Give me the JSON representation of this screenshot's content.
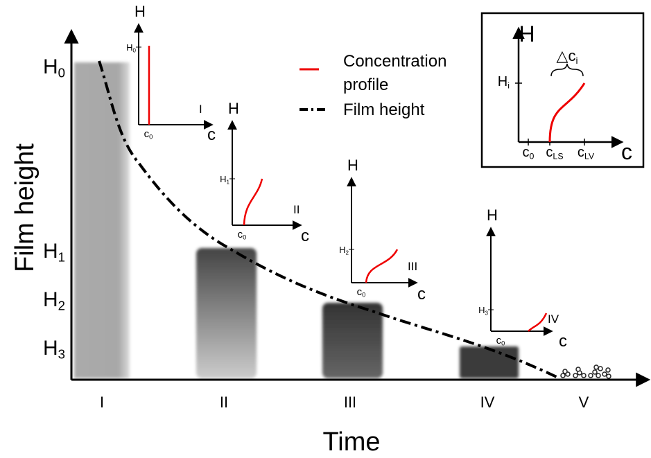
{
  "axes": {
    "y_label": "Film height",
    "x_label": "Time"
  },
  "y_levels": [
    {
      "base": "H",
      "sub": "0"
    },
    {
      "base": "H",
      "sub": "1"
    },
    {
      "base": "H",
      "sub": "2"
    },
    {
      "base": "H",
      "sub": "3"
    }
  ],
  "stages": [
    "I",
    "II",
    "III",
    "IV",
    "V"
  ],
  "legend": {
    "concentration": [
      "Concentration",
      "profile"
    ],
    "film_height": "Film height"
  },
  "insets": [
    {
      "axis_y": "H",
      "axis_x": "c",
      "origin": {
        "base": "c",
        "sub": "0"
      },
      "height": {
        "base": "H",
        "sub": "0"
      },
      "stage": "I"
    },
    {
      "axis_y": "H",
      "axis_x": "c",
      "origin": {
        "base": "c",
        "sub": "0"
      },
      "height": {
        "base": "H",
        "sub": "1"
      },
      "stage": "II"
    },
    {
      "axis_y": "H",
      "axis_x": "c",
      "origin": {
        "base": "c",
        "sub": "0"
      },
      "height": {
        "base": "H",
        "sub": "2"
      },
      "stage": "III"
    },
    {
      "axis_y": "H",
      "axis_x": "c",
      "origin": {
        "base": "c",
        "sub": "0"
      },
      "height": {
        "base": "H",
        "sub": "3"
      },
      "stage": "IV"
    }
  ],
  "detail": {
    "axis_y": "H",
    "axis_x": "c",
    "height": {
      "base": "H",
      "sub": "i"
    },
    "delta": {
      "symbol": "△",
      "base": "c",
      "sub": "i"
    },
    "ticks": [
      {
        "base": "c",
        "sub": "0"
      },
      {
        "base": "c",
        "sub": "LS"
      },
      {
        "base": "c",
        "sub": "LV"
      }
    ]
  }
}
